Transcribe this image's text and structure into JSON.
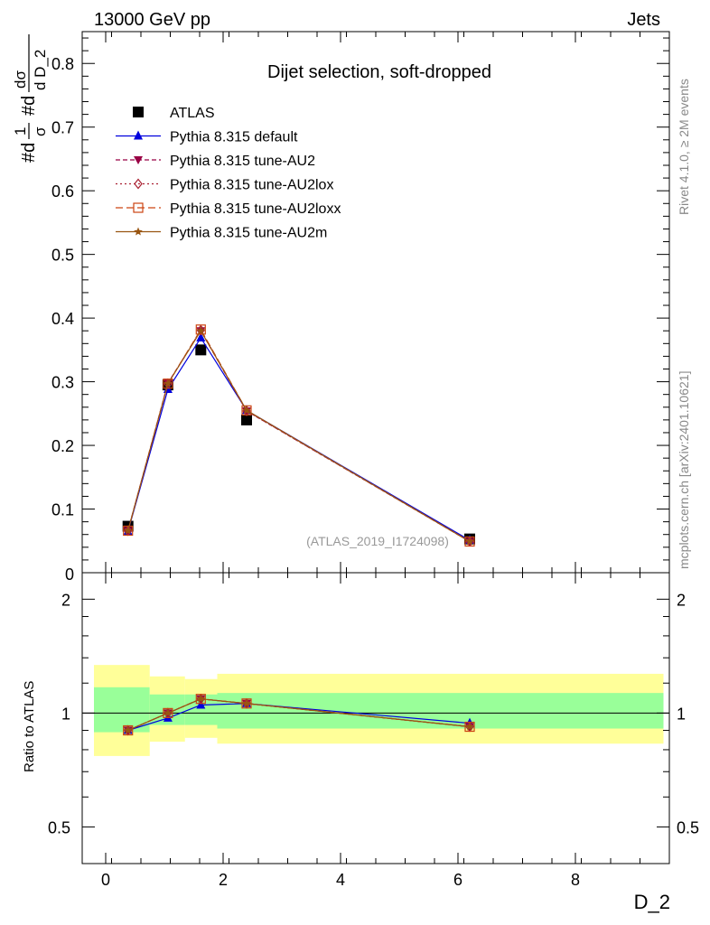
{
  "header": {
    "left": "13000 GeV pp",
    "right": "Jets"
  },
  "side_labels": {
    "rivet": "Rivet 4.1.0, ≥ 2M events",
    "mcplots": "mcplots.cern.ch [arXiv:2401.10621]"
  },
  "chart_data": [
    {
      "type": "line",
      "title": "Dijet selection, soft-dropped",
      "ylabel": "#dσ/#dD_2 (1/σ)",
      "ylabel_parts": {
        "frac1_num": "1",
        "frac1_den": "σ",
        "frac1_prefix": "#d",
        "frac2_num": "dσ",
        "frac2_den": "d D_2",
        "frac2_prefix": "#d"
      },
      "xlabel": "D_2",
      "xlim": [
        -0.4,
        9.6
      ],
      "ylim": [
        0,
        0.85
      ],
      "yticks": [
        0.1,
        0.2,
        0.3,
        0.4,
        0.5,
        0.6,
        0.7,
        0.8
      ],
      "ytick_labels": [
        "0.1",
        "0.2",
        "0.3",
        "0.4",
        "0.5",
        "0.6",
        "0.7",
        "0.8"
      ],
      "y_zero_label": "0",
      "watermark": "(ATLAS_2019_I1724098)",
      "legend": {
        "position": "top-left",
        "entries": [
          "ATLAS",
          "Pythia 8.315 default",
          "Pythia 8.315 tune-AU2",
          "Pythia 8.315 tune-AU2lox",
          "Pythia 8.315 tune-AU2loxx",
          "Pythia 8.315 tune-AU2m"
        ]
      },
      "x": [
        0.38,
        1.06,
        1.62,
        2.4,
        6.2
      ],
      "series": [
        {
          "name": "ATLAS",
          "values": [
            0.073,
            0.295,
            0.35,
            0.24,
            0.053
          ],
          "color": "#000000",
          "marker": "square",
          "dash": "none"
        },
        {
          "name": "Pythia 8.315 default",
          "values": [
            0.065,
            0.288,
            0.369,
            0.255,
            0.051
          ],
          "color": "#0000dd",
          "marker": "triangle-up",
          "dash": "solid"
        },
        {
          "name": "Pythia 8.315 tune-AU2",
          "values": [
            0.066,
            0.298,
            0.38,
            0.254,
            0.049
          ],
          "color": "#990044",
          "marker": "triangle-down",
          "dash": "dash"
        },
        {
          "name": "Pythia 8.315 tune-AU2lox",
          "values": [
            0.066,
            0.297,
            0.381,
            0.254,
            0.049
          ],
          "color": "#aa2233",
          "marker": "diamond",
          "dash": "dot"
        },
        {
          "name": "Pythia 8.315 tune-AU2loxx",
          "values": [
            0.066,
            0.297,
            0.382,
            0.255,
            0.049
          ],
          "color": "#cc4411",
          "marker": "square-open",
          "dash": "longdash"
        },
        {
          "name": "Pythia 8.315 tune-AU2m",
          "values": [
            0.066,
            0.297,
            0.38,
            0.255,
            0.049
          ],
          "color": "#995511",
          "marker": "star",
          "dash": "solid"
        }
      ]
    },
    {
      "type": "line",
      "title": "",
      "ylabel": "Ratio to ATLAS",
      "xlabel": "D_2",
      "xlim": [
        -0.4,
        9.6
      ],
      "ylim": [
        0.4,
        2.35
      ],
      "y_scale": "log",
      "yticks": [
        0.5,
        1,
        2
      ],
      "ytick_labels": [
        "0.5",
        "1",
        "2"
      ],
      "xticks": [
        0,
        2,
        4,
        6,
        8
      ],
      "xtick_labels": [
        "0",
        "2",
        "4",
        "6",
        "8"
      ],
      "bands": {
        "bins": [
          [
            -0.2,
            0.75
          ],
          [
            0.75,
            1.35
          ],
          [
            1.35,
            1.9
          ],
          [
            1.9,
            9.5
          ]
        ],
        "inner": [
          [
            0.89,
            1.17
          ],
          [
            0.93,
            1.12
          ],
          [
            0.93,
            1.12
          ],
          [
            0.91,
            1.13
          ]
        ],
        "outer": [
          [
            0.77,
            1.34
          ],
          [
            0.84,
            1.25
          ],
          [
            0.86,
            1.23
          ],
          [
            0.83,
            1.27
          ]
        ],
        "inner_color": "#99ff99",
        "outer_color": "#ffff99"
      },
      "x": [
        0.38,
        1.06,
        1.62,
        2.4,
        6.2
      ],
      "series": [
        {
          "name": "Pythia 8.315 default",
          "values": [
            0.9,
            0.97,
            1.05,
            1.06,
            0.94
          ],
          "color": "#0000dd",
          "marker": "triangle-up",
          "dash": "solid"
        },
        {
          "name": "Pythia 8.315 tune-AU2",
          "values": [
            0.9,
            1.0,
            1.09,
            1.06,
            0.92
          ],
          "color": "#990044",
          "marker": "triangle-down",
          "dash": "dash"
        },
        {
          "name": "Pythia 8.315 tune-AU2lox",
          "values": [
            0.9,
            1.0,
            1.09,
            1.06,
            0.92
          ],
          "color": "#aa2233",
          "marker": "diamond",
          "dash": "dot"
        },
        {
          "name": "Pythia 8.315 tune-AU2loxx",
          "values": [
            0.9,
            1.0,
            1.09,
            1.06,
            0.92
          ],
          "color": "#cc4411",
          "marker": "square-open",
          "dash": "longdash"
        },
        {
          "name": "Pythia 8.315 tune-AU2m",
          "values": [
            0.9,
            1.0,
            1.09,
            1.06,
            0.92
          ],
          "color": "#995511",
          "marker": "star",
          "dash": "solid"
        }
      ]
    }
  ]
}
